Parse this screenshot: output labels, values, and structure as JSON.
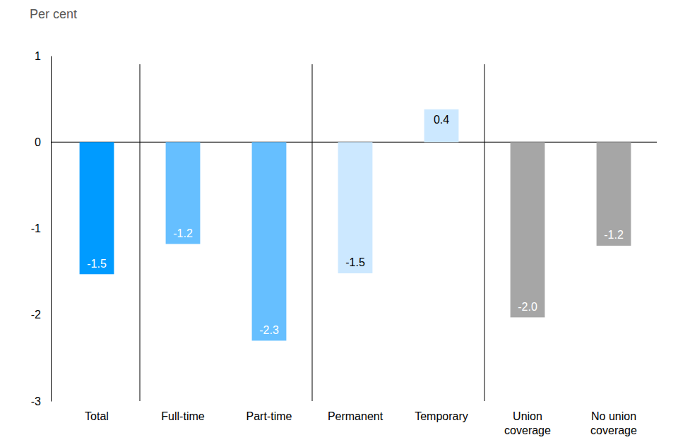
{
  "chart_data": {
    "type": "bar",
    "ylabel": "Per cent",
    "categories": [
      "Total",
      "Full-time",
      "Part-time",
      "Permanent",
      "Temporary",
      "Union coverage",
      "No union coverage"
    ],
    "values": [
      -1.53,
      -1.18,
      -2.3,
      -1.52,
      0.38,
      -2.03,
      -1.2
    ],
    "value_labels": [
      "-1.5",
      "-1.2",
      "-2.3",
      "-1.5",
      "0.4",
      "-2.0",
      "-1.2"
    ],
    "colors": [
      "#009BFF",
      "#66BFFF",
      "#66BFFF",
      "#CCE8FF",
      "#CCE8FF",
      "#A6A6A6",
      "#A6A6A6"
    ],
    "ylim": [
      -3,
      1
    ],
    "yticks": [
      -3,
      -2,
      -1,
      0,
      1
    ],
    "grid": false,
    "data_labels": true
  }
}
